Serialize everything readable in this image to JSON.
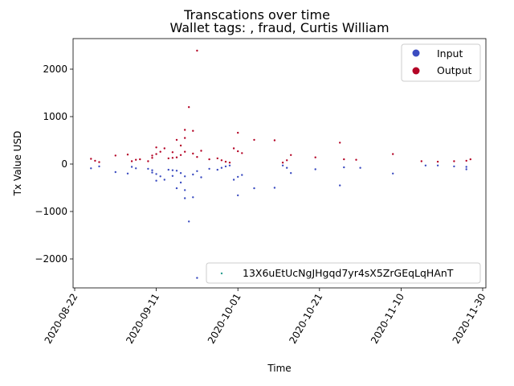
{
  "chart_data": {
    "type": "scatter",
    "title": "Transcations over time",
    "subtitle": "Wallet tags: , fraud, Curtis William",
    "xlabel": "Time",
    "ylabel": "Tx Value USD",
    "xlim": [
      "2020-08-22",
      "2020-11-30"
    ],
    "ylim": [
      -2650,
      2650
    ],
    "x_ticks": [
      "2020-08-22",
      "2020-09-11",
      "2020-10-01",
      "2020-10-21",
      "2020-11-10",
      "2020-11-30"
    ],
    "y_ticks": [
      -2000,
      -1000,
      0,
      1000,
      2000
    ],
    "y_tick_labels": [
      "−2000",
      "−1000",
      "0",
      "1000",
      "2000"
    ],
    "grid": false,
    "legend": {
      "placement": "top-right",
      "entries": [
        {
          "label": "Input",
          "color": "#3b4cc0"
        },
        {
          "label": "Output",
          "color": "#b40426"
        }
      ]
    },
    "legend2": {
      "placement": "lower-right",
      "entries": [
        {
          "label": "13X6uEtUcNgJHgqd7yr4sX5ZrGEqLqHAnT",
          "color": "#2a9d8f"
        }
      ]
    },
    "series": [
      {
        "name": "Input",
        "color": "#3b4cc0",
        "points": [
          [
            "2020-08-26",
            -90
          ],
          [
            "2020-08-28",
            -50
          ],
          [
            "2020-09-01",
            -170
          ],
          [
            "2020-09-04",
            -200
          ],
          [
            "2020-09-05",
            -60
          ],
          [
            "2020-09-06",
            -90
          ],
          [
            "2020-09-09",
            -100
          ],
          [
            "2020-09-10",
            -180
          ],
          [
            "2020-09-10",
            -130
          ],
          [
            "2020-09-11",
            -210
          ],
          [
            "2020-09-11",
            -350
          ],
          [
            "2020-09-12",
            -260
          ],
          [
            "2020-09-13",
            -330
          ],
          [
            "2020-09-14",
            -120
          ],
          [
            "2020-09-15",
            -130
          ],
          [
            "2020-09-15",
            -250
          ],
          [
            "2020-09-16",
            -140
          ],
          [
            "2020-09-16",
            -510
          ],
          [
            "2020-09-17",
            -190
          ],
          [
            "2020-09-17",
            -390
          ],
          [
            "2020-09-18",
            -550
          ],
          [
            "2020-09-18",
            -260
          ],
          [
            "2020-09-18",
            -720
          ],
          [
            "2020-09-19",
            -1210
          ],
          [
            "2020-09-20",
            -700
          ],
          [
            "2020-09-20",
            -220
          ],
          [
            "2020-09-21",
            -150
          ],
          [
            "2020-09-21",
            -2400
          ],
          [
            "2020-09-22",
            -280
          ],
          [
            "2020-09-24",
            -100
          ],
          [
            "2020-09-26",
            -120
          ],
          [
            "2020-09-27",
            -80
          ],
          [
            "2020-09-28",
            -50
          ],
          [
            "2020-09-29",
            -30
          ],
          [
            "2020-09-30",
            -330
          ],
          [
            "2020-10-01",
            -660
          ],
          [
            "2020-10-01",
            -270
          ],
          [
            "2020-10-02",
            -230
          ],
          [
            "2020-10-05",
            -510
          ],
          [
            "2020-10-10",
            -500
          ],
          [
            "2020-10-12",
            -30
          ],
          [
            "2020-10-13",
            -80
          ],
          [
            "2020-10-14",
            -190
          ],
          [
            "2020-10-20",
            -110
          ],
          [
            "2020-10-26",
            -450
          ],
          [
            "2020-10-27",
            -70
          ],
          [
            "2020-10-31",
            -80
          ],
          [
            "2020-11-08",
            -200
          ],
          [
            "2020-11-16",
            -30
          ],
          [
            "2020-11-19",
            -30
          ],
          [
            "2020-11-23",
            -50
          ],
          [
            "2020-11-26",
            -60
          ],
          [
            "2020-11-26",
            -110
          ]
        ]
      },
      {
        "name": "Output",
        "color": "#b40426",
        "points": [
          [
            "2020-08-26",
            110
          ],
          [
            "2020-08-27",
            70
          ],
          [
            "2020-08-28",
            40
          ],
          [
            "2020-09-01",
            180
          ],
          [
            "2020-09-04",
            200
          ],
          [
            "2020-09-05",
            60
          ],
          [
            "2020-09-06",
            90
          ],
          [
            "2020-09-07",
            100
          ],
          [
            "2020-09-09",
            60
          ],
          [
            "2020-09-10",
            180
          ],
          [
            "2020-09-10",
            130
          ],
          [
            "2020-09-11",
            210
          ],
          [
            "2020-09-11",
            350
          ],
          [
            "2020-09-12",
            260
          ],
          [
            "2020-09-13",
            330
          ],
          [
            "2020-09-14",
            120
          ],
          [
            "2020-09-15",
            130
          ],
          [
            "2020-09-15",
            250
          ],
          [
            "2020-09-16",
            140
          ],
          [
            "2020-09-16",
            510
          ],
          [
            "2020-09-17",
            190
          ],
          [
            "2020-09-17",
            390
          ],
          [
            "2020-09-18",
            550
          ],
          [
            "2020-09-18",
            260
          ],
          [
            "2020-09-18",
            720
          ],
          [
            "2020-09-19",
            1200
          ],
          [
            "2020-09-20",
            700
          ],
          [
            "2020-09-20",
            220
          ],
          [
            "2020-09-21",
            150
          ],
          [
            "2020-09-21",
            2390
          ],
          [
            "2020-09-22",
            280
          ],
          [
            "2020-09-24",
            100
          ],
          [
            "2020-09-26",
            120
          ],
          [
            "2020-09-27",
            80
          ],
          [
            "2020-09-28",
            50
          ],
          [
            "2020-09-29",
            30
          ],
          [
            "2020-09-30",
            330
          ],
          [
            "2020-10-01",
            660
          ],
          [
            "2020-10-01",
            270
          ],
          [
            "2020-10-02",
            230
          ],
          [
            "2020-10-05",
            510
          ],
          [
            "2020-10-10",
            500
          ],
          [
            "2020-10-12",
            30
          ],
          [
            "2020-10-13",
            80
          ],
          [
            "2020-10-14",
            190
          ],
          [
            "2020-10-20",
            140
          ],
          [
            "2020-10-26",
            450
          ],
          [
            "2020-10-27",
            100
          ],
          [
            "2020-10-30",
            90
          ],
          [
            "2020-11-08",
            210
          ],
          [
            "2020-11-15",
            60
          ],
          [
            "2020-11-19",
            50
          ],
          [
            "2020-11-23",
            60
          ],
          [
            "2020-11-26",
            70
          ],
          [
            "2020-11-27",
            100
          ]
        ]
      }
    ]
  }
}
